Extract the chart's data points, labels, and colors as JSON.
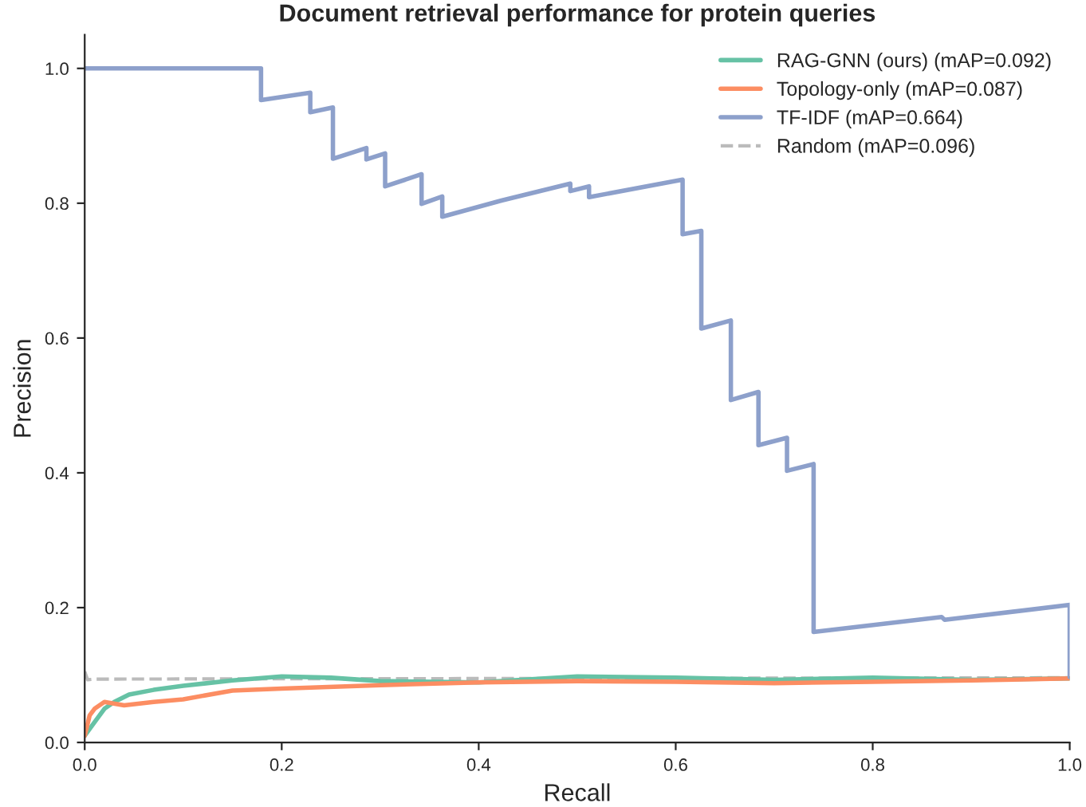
{
  "chart_data": {
    "type": "line",
    "title": "Document retrieval performance for protein queries",
    "xlabel": "Recall",
    "ylabel": "Precision",
    "xlim": [
      0,
      1
    ],
    "ylim": [
      0,
      1.05
    ],
    "xticks": [
      {
        "value": 0,
        "label": "0.0"
      },
      0.2,
      0.4,
      0.6,
      0.8,
      {
        "value": 1,
        "label": "1.0"
      }
    ],
    "yticks": [
      {
        "value": 0,
        "label": "0.0"
      },
      0.2,
      0.4,
      0.6,
      0.8,
      {
        "value": 1,
        "label": "1.0"
      }
    ],
    "grid": false,
    "legend": "top right",
    "marker": "none",
    "series": [
      {
        "name": "RAG-GNN (ours) (mAP=0.092)",
        "color": "#66c2a5",
        "line_style": "solid",
        "x": [
          0,
          0.005,
          0.01,
          0.02,
          0.03,
          0.045,
          0.07,
          0.1,
          0.15,
          0.2,
          0.25,
          0.3,
          0.4,
          0.5,
          0.6,
          0.7,
          0.8,
          0.9,
          1.0
        ],
        "values": [
          0.01,
          0.02,
          0.03,
          0.05,
          0.06,
          0.071,
          0.078,
          0.084,
          0.092,
          0.098,
          0.096,
          0.091,
          0.089,
          0.098,
          0.096,
          0.093,
          0.096,
          0.093,
          0.095
        ]
      },
      {
        "name": "Topology-only (mAP=0.087)",
        "color": "#fc8d62",
        "line_style": "solid",
        "x": [
          0,
          0.005,
          0.01,
          0.02,
          0.04,
          0.07,
          0.1,
          0.15,
          0.2,
          0.3,
          0.4,
          0.5,
          0.6,
          0.7,
          0.8,
          0.9,
          1.0
        ],
        "values": [
          0.01,
          0.04,
          0.05,
          0.06,
          0.055,
          0.06,
          0.064,
          0.077,
          0.08,
          0.085,
          0.089,
          0.091,
          0.09,
          0.088,
          0.09,
          0.092,
          0.095
        ]
      },
      {
        "name": "TF-IDF (mAP=0.664)",
        "color": "#8da0cb",
        "line_style": "solid",
        "x": [
          0,
          0.179,
          0.179,
          0.229,
          0.229,
          0.252,
          0.252,
          0.286,
          0.286,
          0.305,
          0.305,
          0.342,
          0.342,
          0.363,
          0.363,
          0.423,
          0.493,
          0.493,
          0.512,
          0.512,
          0.607,
          0.607,
          0.626,
          0.626,
          0.656,
          0.656,
          0.684,
          0.684,
          0.713,
          0.713,
          0.74,
          0.74,
          0.87,
          0.873,
          1.0,
          1.0
        ],
        "values": [
          1.0,
          1.0,
          0.953,
          0.964,
          0.935,
          0.942,
          0.866,
          0.882,
          0.865,
          0.874,
          0.825,
          0.843,
          0.799,
          0.81,
          0.78,
          0.804,
          0.829,
          0.818,
          0.825,
          0.809,
          0.835,
          0.754,
          0.759,
          0.614,
          0.626,
          0.508,
          0.52,
          0.441,
          0.452,
          0.403,
          0.413,
          0.164,
          0.186,
          0.182,
          0.204,
          0.097
        ]
      },
      {
        "name": "Random (mAP=0.096)",
        "color": "#bbbbbb",
        "line_style": "dashed",
        "x": [
          0,
          0.003,
          0.01,
          1.0
        ],
        "values": [
          0.105,
          0.093,
          0.094,
          0.096
        ]
      }
    ]
  }
}
